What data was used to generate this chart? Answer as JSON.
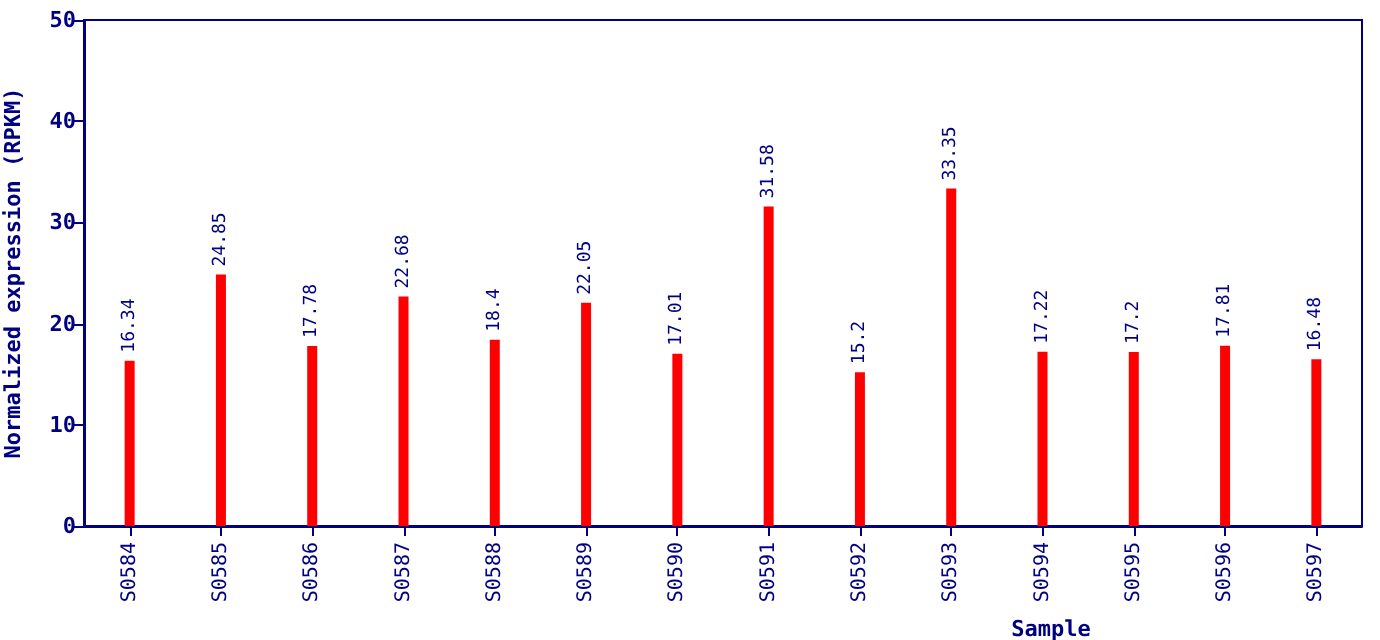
{
  "chart_data": {
    "type": "bar",
    "xlabel": "Sample",
    "ylabel": "Normalized expression (RPKM)",
    "categories": [
      "S0584",
      "S0585",
      "S0586",
      "S0587",
      "S0588",
      "S0589",
      "S0590",
      "S0591",
      "S0592",
      "S0593",
      "S0594",
      "S0595",
      "S0596",
      "S0597"
    ],
    "values": [
      16.34,
      24.85,
      17.78,
      22.68,
      18.4,
      22.05,
      17.01,
      31.58,
      15.2,
      33.35,
      17.22,
      17.2,
      17.81,
      16.48
    ],
    "color": "#ff0000",
    "ylim": [
      0,
      50
    ],
    "yticks": [
      0,
      10,
      20,
      30,
      40,
      50
    ],
    "grid": false,
    "data_labels": true
  }
}
